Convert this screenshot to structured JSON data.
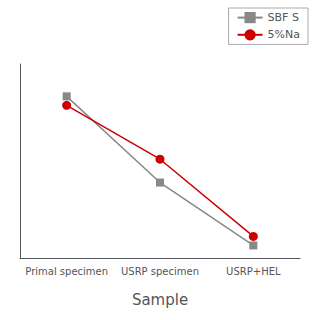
{
  "chart_data": {
    "type": "line",
    "xlabel": "Sample",
    "categories": [
      "Primal specimen",
      "USRP specimen",
      "USRP+HEL"
    ],
    "series": [
      {
        "name": "SBF S",
        "color": "#888888",
        "marker": "square",
        "values": [
          0.9,
          0.42,
          0.07
        ]
      },
      {
        "name": "5%Na",
        "color": "#cc0000",
        "marker": "circle",
        "values": [
          0.85,
          0.55,
          0.12
        ]
      }
    ],
    "ylim": [
      0.0,
      1.08
    ],
    "tick_labels": "x",
    "grid": false,
    "legend": "upper right"
  }
}
